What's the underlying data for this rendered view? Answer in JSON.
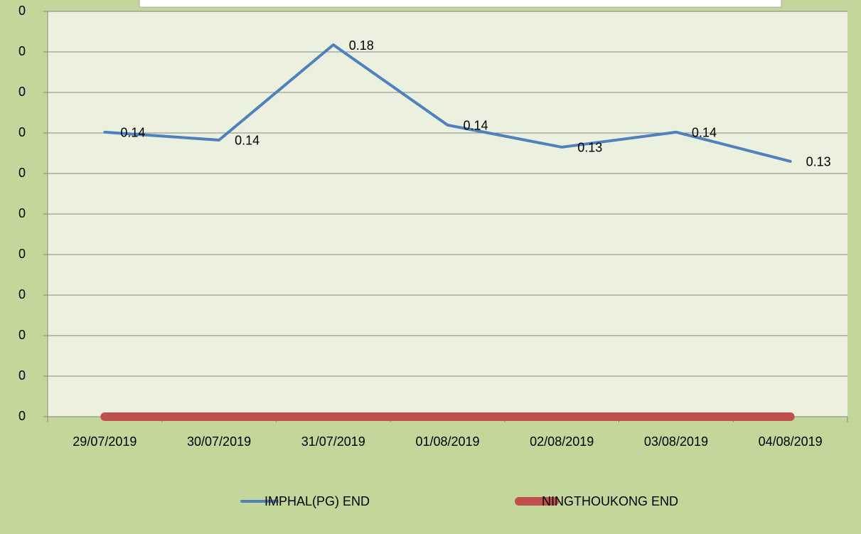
{
  "chart_data": {
    "type": "line",
    "categories": [
      "29/07/2019",
      "30/07/2019",
      "31/07/2019",
      "01/08/2019",
      "02/08/2019",
      "03/08/2019",
      "04/08/2019"
    ],
    "series": [
      {
        "name": "IMPHAL(PG) END",
        "color": "#4f81bd",
        "values": [
          0.1404,
          0.1365,
          0.1835,
          0.1439,
          0.133,
          0.1404,
          0.126
        ],
        "value_labels": [
          "0.14",
          "0.14",
          "0.18",
          "0.14",
          "0.13",
          "0.14",
          "0.13"
        ]
      },
      {
        "name": "NINGTHOUKONG END",
        "color": "#c0504d",
        "values": [
          0,
          0,
          0,
          0,
          0,
          0,
          0
        ]
      }
    ],
    "ylim": [
      0,
      0.2
    ],
    "yticks": [
      0,
      {
        "value": 0.02,
        "label": "0"
      },
      {
        "value": 0.04,
        "label": "0"
      },
      {
        "value": 0.06,
        "label": "0"
      },
      {
        "value": 0.08,
        "label": "0"
      },
      {
        "value": 0.1,
        "label": "0"
      },
      {
        "value": 0.12,
        "label": "0"
      },
      {
        "value": 0.14,
        "label": "0"
      },
      {
        "value": 0.16,
        "label": "0"
      },
      {
        "value": 0.18,
        "label": "0"
      },
      {
        "value": 0.2,
        "label": "0"
      }
    ],
    "grid": true,
    "legend": "bottom"
  }
}
